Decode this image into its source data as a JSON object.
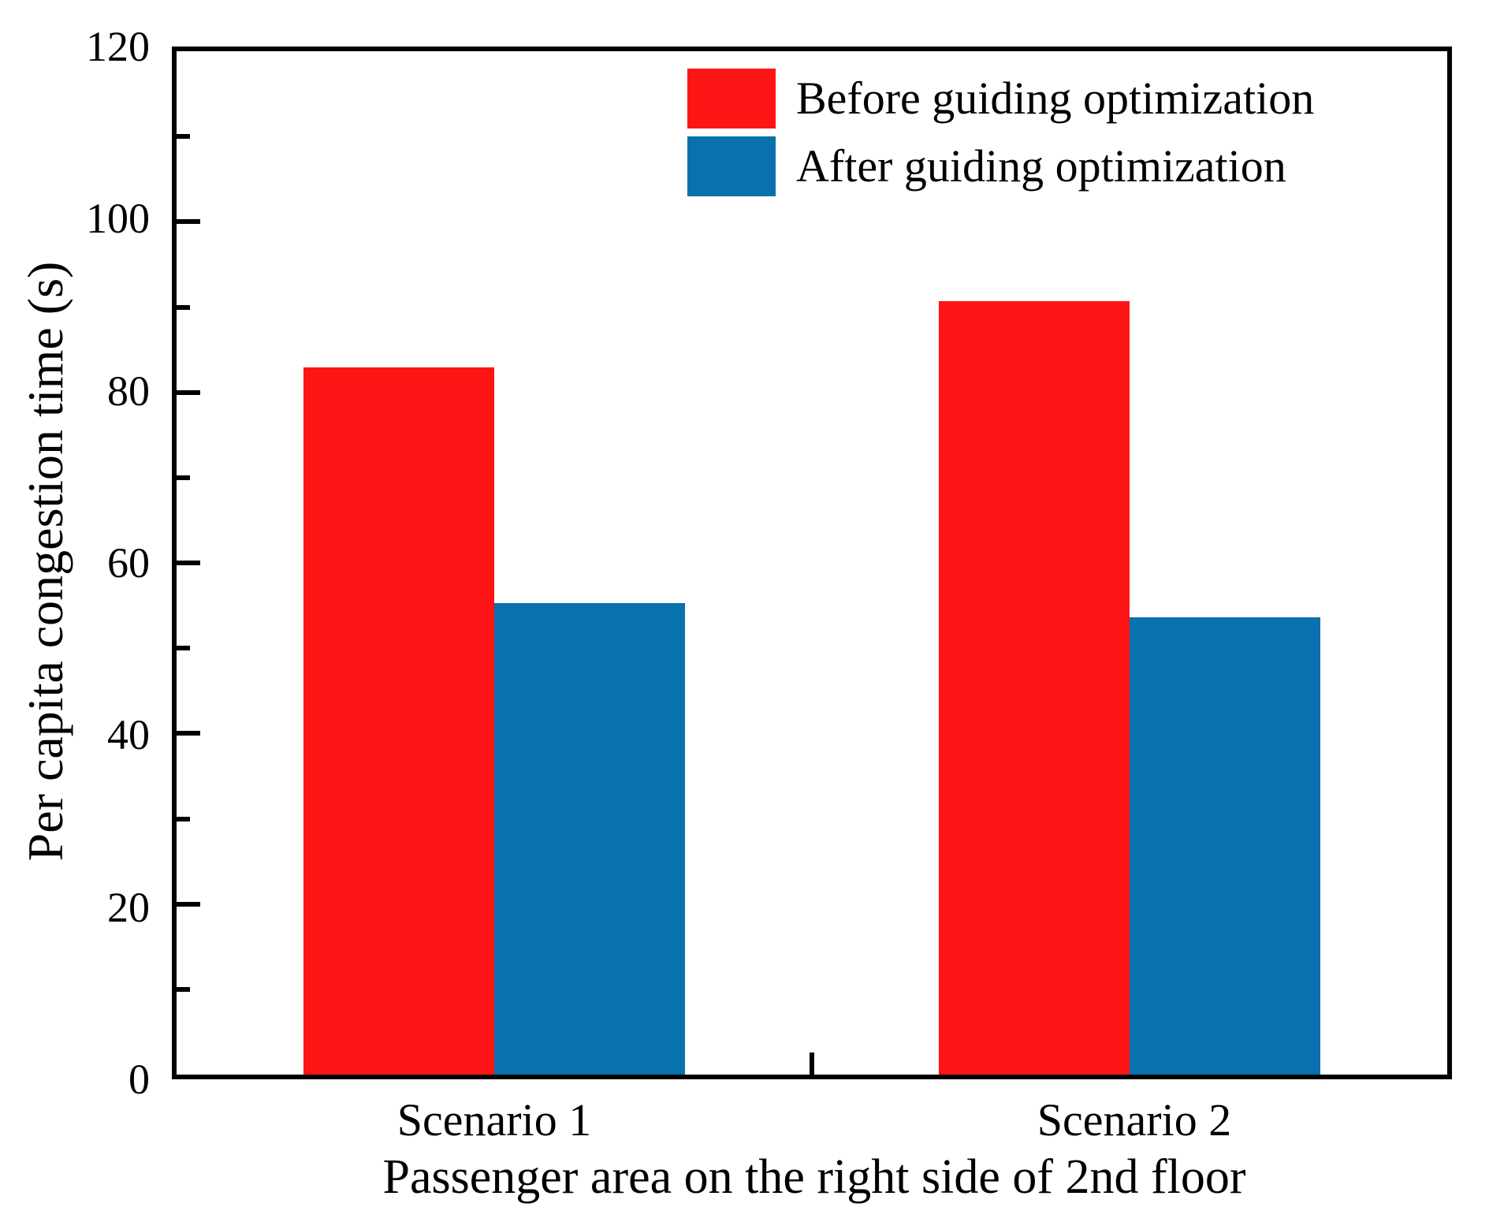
{
  "chart_data": {
    "type": "bar",
    "categories": [
      "Scenario 1",
      "Scenario 2"
    ],
    "series": [
      {
        "name": "Before guiding optimization",
        "color": "#FD1515",
        "values": [
          82.9,
          90.7
        ]
      },
      {
        "name": "After guiding optimization",
        "color": "#0971AD",
        "values": [
          55.3,
          53.6
        ]
      }
    ],
    "xlabel": "Passenger area on the right side of 2nd floor",
    "ylabel": "Per capita congestion time (s)",
    "ylim": [
      0,
      120
    ],
    "y_major_ticks": [
      0,
      20,
      40,
      60,
      80,
      100,
      120
    ],
    "y_minor_ticks": [
      10,
      30,
      50,
      70,
      90,
      110
    ],
    "legend_position": "top-center-inside",
    "grid": false,
    "axis_color": "#000000",
    "background_color": "#ffffff"
  }
}
